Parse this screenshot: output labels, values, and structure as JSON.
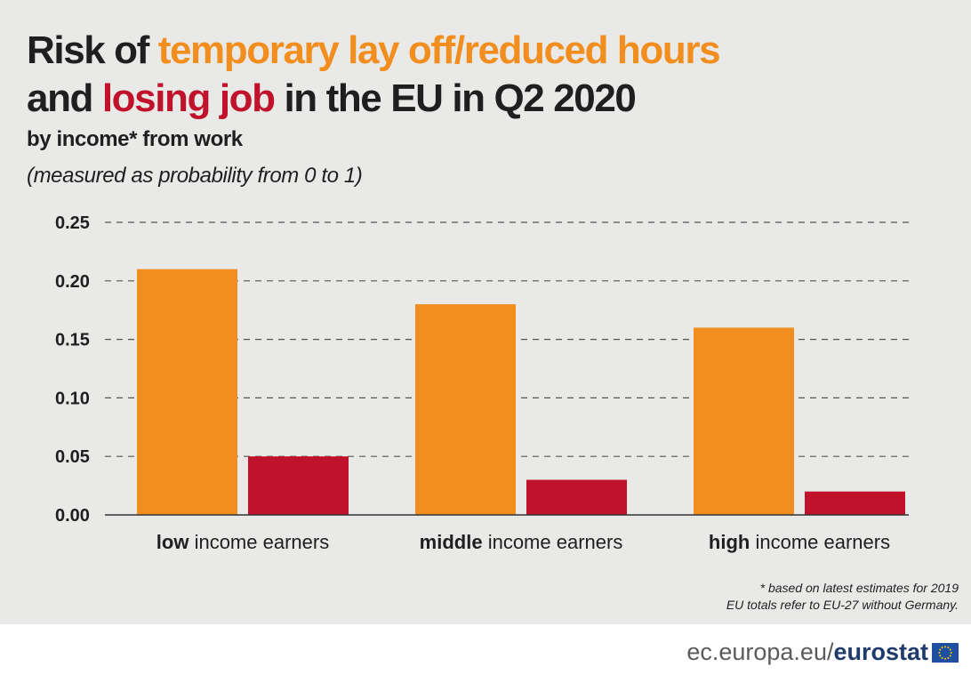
{
  "header": {
    "title_part1": "Risk of ",
    "title_part2": "temporary lay off/reduced hours",
    "title_part3": "and ",
    "title_part4": "losing job",
    "title_part5": " in the EU in Q2 2020",
    "subtitle": "by income* from work",
    "measure_note": "(measured as probability from 0 to 1)"
  },
  "colors": {
    "panel_bg": "#e9e9e8",
    "orange": "#f28e1e",
    "red": "#c0132b",
    "text": "#1f1f1f",
    "grid": "#555555"
  },
  "chart_data": {
    "type": "bar",
    "categories": [
      "low income earners",
      "middle income earners",
      "high income earners"
    ],
    "category_bold_words": [
      "low",
      "middle",
      "high"
    ],
    "category_rest_words": [
      " income earners",
      " income earners",
      " income earners"
    ],
    "series": [
      {
        "name": "temporary lay off/reduced hours",
        "color": "#f28e1e",
        "values": [
          0.21,
          0.18,
          0.16
        ]
      },
      {
        "name": "losing job",
        "color": "#c0132b",
        "values": [
          0.05,
          0.03,
          0.02
        ]
      }
    ],
    "ylim": [
      0,
      0.25
    ],
    "yticks": [
      "0.00",
      "0.05",
      "0.10",
      "0.15",
      "0.20",
      "0.25"
    ],
    "grid": true,
    "xlabel": "",
    "ylabel": ""
  },
  "footnote": {
    "line1": "* based on latest estimates for 2019",
    "line2": "EU totals refer to EU-27 without Germany."
  },
  "brand": {
    "url_prefix": "ec.europa.eu/",
    "url_name": "eurostat",
    "logo_icon": "eu-flag-icon"
  }
}
